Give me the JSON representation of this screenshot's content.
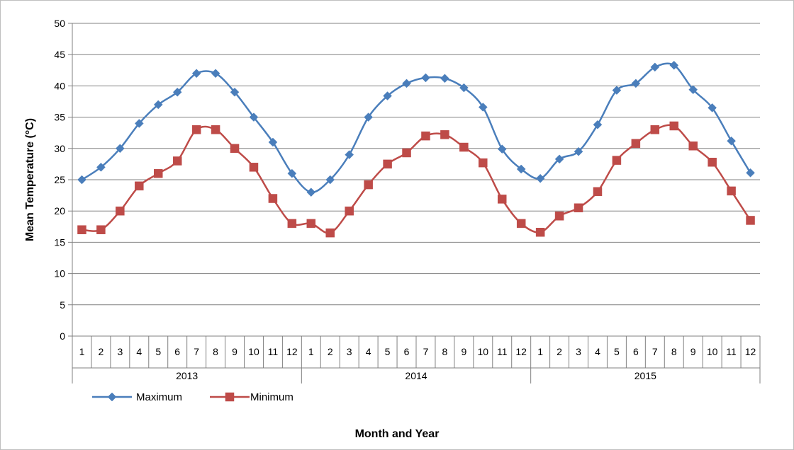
{
  "chart_data": {
    "type": "line",
    "ylabel": "Mean Temperature (°C)",
    "xlabel": "Month and Year",
    "ylim": [
      0,
      50
    ],
    "y_ticks": [
      0,
      5,
      10,
      15,
      20,
      25,
      30,
      35,
      40,
      45,
      50
    ],
    "grid": "horizontal",
    "legend_position": "bottom-left",
    "month_labels": [
      "1",
      "2",
      "3",
      "4",
      "5",
      "6",
      "7",
      "8",
      "9",
      "10",
      "11",
      "12"
    ],
    "years": [
      "2013",
      "2014",
      "2015"
    ],
    "categories": [
      "1",
      "2",
      "3",
      "4",
      "5",
      "6",
      "7",
      "8",
      "9",
      "10",
      "11",
      "12",
      "1",
      "2",
      "3",
      "4",
      "5",
      "6",
      "7",
      "8",
      "9",
      "10",
      "11",
      "12",
      "1",
      "2",
      "3",
      "4",
      "5",
      "6",
      "7",
      "8",
      "9",
      "10",
      "11",
      "12"
    ],
    "series": [
      {
        "name": "Maximum",
        "color": "#4a7ebb",
        "marker": "diamond",
        "values": [
          25,
          27,
          30,
          34,
          37,
          39,
          42,
          42,
          39,
          35,
          31,
          26,
          23,
          25,
          29,
          35,
          38.4,
          40.4,
          41.3,
          41.2,
          39.7,
          36.6,
          29.9,
          26.7,
          25.2,
          28.3,
          29.5,
          33.8,
          39.3,
          40.4,
          43,
          43.3,
          39.4,
          36.5,
          31.2,
          26.1
        ]
      },
      {
        "name": "Minimum",
        "color": "#be4b48",
        "marker": "square",
        "values": [
          17,
          17,
          20,
          24,
          26,
          28,
          33,
          33,
          30,
          27,
          22,
          18,
          18,
          16.5,
          20,
          24.2,
          27.5,
          29.3,
          32,
          32.2,
          30.2,
          27.7,
          21.9,
          18,
          16.6,
          19.2,
          20.5,
          23.1,
          28.1,
          30.8,
          33,
          33.6,
          30.4,
          27.8,
          23.2,
          18.5
        ]
      }
    ]
  }
}
